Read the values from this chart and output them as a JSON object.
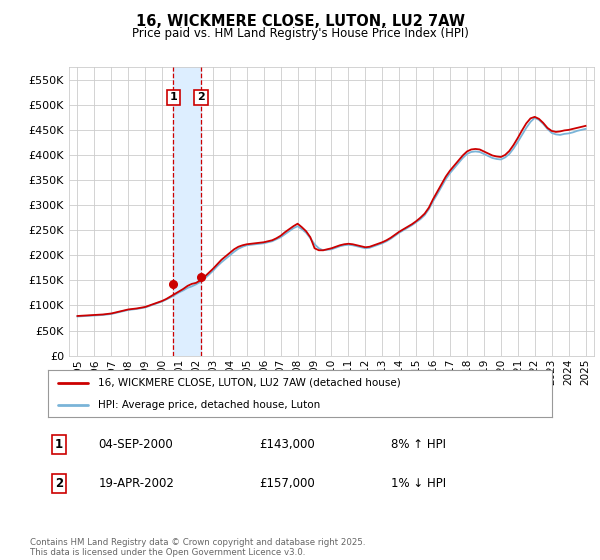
{
  "title": "16, WICKMERE CLOSE, LUTON, LU2 7AW",
  "subtitle": "Price paid vs. HM Land Registry's House Price Index (HPI)",
  "legend_line1": "16, WICKMERE CLOSE, LUTON, LU2 7AW (detached house)",
  "legend_line2": "HPI: Average price, detached house, Luton",
  "footnote": "Contains HM Land Registry data © Crown copyright and database right 2025.\nThis data is licensed under the Open Government Licence v3.0.",
  "sale1_date": "04-SEP-2000",
  "sale1_price": "£143,000",
  "sale1_hpi": "8% ↑ HPI",
  "sale2_date": "19-APR-2002",
  "sale2_price": "£157,000",
  "sale2_hpi": "1% ↓ HPI",
  "sale1_x": 2000.67,
  "sale1_y": 143000,
  "sale2_x": 2002.3,
  "sale2_y": 157000,
  "hpi_color": "#7ab4d8",
  "price_color": "#cc0000",
  "sale_marker_color": "#cc0000",
  "shade_color": "#ddeeff",
  "vline_color": "#cc0000",
  "background_color": "#ffffff",
  "grid_color": "#cccccc",
  "legend_border_color": "#aaaaaa",
  "sale_box_color": "#cc0000",
  "footnote_color": "#666666",
  "ylim": [
    0,
    575000
  ],
  "xlim": [
    1994.5,
    2025.5
  ],
  "yticks": [
    0,
    50000,
    100000,
    150000,
    200000,
    250000,
    300000,
    350000,
    400000,
    450000,
    500000,
    550000
  ],
  "xticks": [
    1995,
    1996,
    1997,
    1998,
    1999,
    2000,
    2001,
    2002,
    2003,
    2004,
    2005,
    2006,
    2007,
    2008,
    2009,
    2010,
    2011,
    2012,
    2013,
    2014,
    2015,
    2016,
    2017,
    2018,
    2019,
    2020,
    2021,
    2022,
    2023,
    2024,
    2025
  ],
  "hpi_years": [
    1995.0,
    1995.25,
    1995.5,
    1995.75,
    1996.0,
    1996.25,
    1996.5,
    1996.75,
    1997.0,
    1997.25,
    1997.5,
    1997.75,
    1998.0,
    1998.25,
    1998.5,
    1998.75,
    1999.0,
    1999.25,
    1999.5,
    1999.75,
    2000.0,
    2000.25,
    2000.5,
    2000.75,
    2001.0,
    2001.25,
    2001.5,
    2001.75,
    2002.0,
    2002.25,
    2002.5,
    2002.75,
    2003.0,
    2003.25,
    2003.5,
    2003.75,
    2004.0,
    2004.25,
    2004.5,
    2004.75,
    2005.0,
    2005.25,
    2005.5,
    2005.75,
    2006.0,
    2006.25,
    2006.5,
    2006.75,
    2007.0,
    2007.25,
    2007.5,
    2007.75,
    2008.0,
    2008.25,
    2008.5,
    2008.75,
    2009.0,
    2009.25,
    2009.5,
    2009.75,
    2010.0,
    2010.25,
    2010.5,
    2010.75,
    2011.0,
    2011.25,
    2011.5,
    2011.75,
    2012.0,
    2012.25,
    2012.5,
    2012.75,
    2013.0,
    2013.25,
    2013.5,
    2013.75,
    2014.0,
    2014.25,
    2014.5,
    2014.75,
    2015.0,
    2015.25,
    2015.5,
    2015.75,
    2016.0,
    2016.25,
    2016.5,
    2016.75,
    2017.0,
    2017.25,
    2017.5,
    2017.75,
    2018.0,
    2018.25,
    2018.5,
    2018.75,
    2019.0,
    2019.25,
    2019.5,
    2019.75,
    2020.0,
    2020.25,
    2020.5,
    2020.75,
    2021.0,
    2021.25,
    2021.5,
    2021.75,
    2022.0,
    2022.25,
    2022.5,
    2022.75,
    2023.0,
    2023.25,
    2023.5,
    2023.75,
    2024.0,
    2024.25,
    2024.5,
    2024.75,
    2025.0
  ],
  "hpi_values": [
    78000,
    78500,
    79000,
    79500,
    80000,
    80500,
    81000,
    82000,
    83000,
    85000,
    87000,
    89000,
    91000,
    92000,
    93000,
    94500,
    96000,
    99000,
    102000,
    105000,
    108000,
    112000,
    116000,
    121000,
    126000,
    130000,
    135000,
    138000,
    142000,
    147000,
    153000,
    161000,
    169000,
    178000,
    186000,
    193000,
    200000,
    207000,
    213000,
    217000,
    220000,
    221000,
    222000,
    223000,
    224000,
    226000,
    228000,
    232000,
    236000,
    242000,
    248000,
    254000,
    258000,
    252000,
    245000,
    234000,
    222000,
    214000,
    210000,
    211000,
    212000,
    215000,
    218000,
    220000,
    221000,
    220000,
    218000,
    216000,
    214000,
    215000,
    218000,
    221000,
    224000,
    228000,
    233000,
    239000,
    245000,
    250000,
    255000,
    260000,
    266000,
    272000,
    280000,
    292000,
    308000,
    322000,
    337000,
    352000,
    364000,
    374000,
    384000,
    394000,
    402000,
    406000,
    407000,
    406000,
    402000,
    398000,
    394000,
    392000,
    391000,
    395000,
    402000,
    413000,
    426000,
    440000,
    454000,
    466000,
    474000,
    470000,
    462000,
    452000,
    444000,
    441000,
    440000,
    442000,
    443000,
    445000,
    448000,
    450000,
    452000
  ],
  "price_years": [
    1995.0,
    1995.25,
    1995.5,
    1995.75,
    1996.0,
    1996.25,
    1996.5,
    1996.75,
    1997.0,
    1997.25,
    1997.5,
    1997.75,
    1998.0,
    1998.25,
    1998.5,
    1998.75,
    1999.0,
    1999.25,
    1999.5,
    1999.75,
    2000.0,
    2000.25,
    2000.5,
    2000.75,
    2001.0,
    2001.25,
    2001.5,
    2001.75,
    2002.0,
    2002.25,
    2002.5,
    2002.75,
    2003.0,
    2003.25,
    2003.5,
    2003.75,
    2004.0,
    2004.25,
    2004.5,
    2004.75,
    2005.0,
    2005.25,
    2005.5,
    2005.75,
    2006.0,
    2006.25,
    2006.5,
    2006.75,
    2007.0,
    2007.25,
    2007.5,
    2007.75,
    2008.0,
    2008.25,
    2008.5,
    2008.75,
    2009.0,
    2009.25,
    2009.5,
    2009.75,
    2010.0,
    2010.25,
    2010.5,
    2010.75,
    2011.0,
    2011.25,
    2011.5,
    2011.75,
    2012.0,
    2012.25,
    2012.5,
    2012.75,
    2013.0,
    2013.25,
    2013.5,
    2013.75,
    2014.0,
    2014.25,
    2014.5,
    2014.75,
    2015.0,
    2015.25,
    2015.5,
    2015.75,
    2016.0,
    2016.25,
    2016.5,
    2016.75,
    2017.0,
    2017.25,
    2017.5,
    2017.75,
    2018.0,
    2018.25,
    2018.5,
    2018.75,
    2019.0,
    2019.25,
    2019.5,
    2019.75,
    2020.0,
    2020.25,
    2020.5,
    2020.75,
    2021.0,
    2021.25,
    2021.5,
    2021.75,
    2022.0,
    2022.25,
    2022.5,
    2022.75,
    2023.0,
    2023.25,
    2023.5,
    2023.75,
    2024.0,
    2024.25,
    2024.5,
    2024.75,
    2025.0
  ],
  "price_values": [
    79000,
    79500,
    80000,
    80500,
    81000,
    81500,
    82000,
    83000,
    84000,
    86000,
    88000,
    90000,
    92000,
    93000,
    94000,
    95500,
    97000,
    100000,
    103000,
    106000,
    109000,
    113000,
    118000,
    123000,
    128000,
    133000,
    139000,
    143000,
    145000,
    150000,
    157000,
    165000,
    173000,
    182000,
    191000,
    198000,
    205000,
    212000,
    217000,
    220000,
    222000,
    223000,
    224000,
    225000,
    226000,
    228000,
    230000,
    234000,
    239000,
    246000,
    252000,
    258000,
    263000,
    256000,
    248000,
    236000,
    214000,
    210000,
    210000,
    212000,
    214000,
    217000,
    220000,
    222000,
    223000,
    222000,
    220000,
    218000,
    216000,
    217000,
    220000,
    223000,
    226000,
    230000,
    235000,
    241000,
    247000,
    252000,
    257000,
    262000,
    268000,
    275000,
    283000,
    295000,
    312000,
    327000,
    342000,
    357000,
    369000,
    379000,
    389000,
    399000,
    407000,
    411000,
    412000,
    411000,
    407000,
    403000,
    399000,
    397000,
    396000,
    400000,
    408000,
    420000,
    434000,
    449000,
    463000,
    473000,
    476000,
    472000,
    464000,
    454000,
    448000,
    446000,
    447000,
    449000,
    450000,
    452000,
    454000,
    456000,
    458000
  ]
}
